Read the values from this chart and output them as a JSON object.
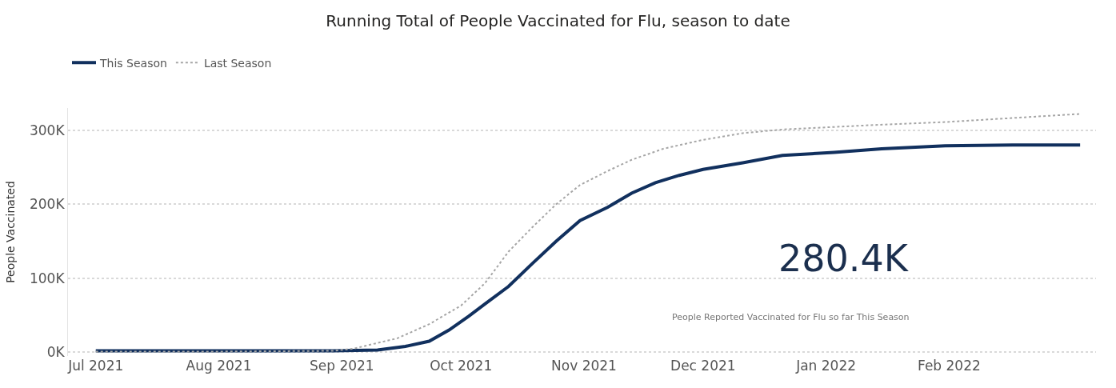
{
  "chart_data": {
    "type": "line",
    "title": "Running Total of People Vaccinated for Flu, season to date",
    "ylabel": "People Vaccinated",
    "series": [
      {
        "name": "This Season",
        "color": "#11305e",
        "line_style": "solid",
        "x": [
          "2021-07-01",
          "2021-07-31",
          "2021-08-30",
          "2021-09-10",
          "2021-09-17",
          "2021-09-23",
          "2021-09-28",
          "2021-10-03",
          "2021-10-07",
          "2021-10-13",
          "2021-10-19",
          "2021-10-25",
          "2021-10-31",
          "2021-11-07",
          "2021-11-13",
          "2021-11-19",
          "2021-11-25",
          "2021-12-01",
          "2021-12-11",
          "2021-12-21",
          "2022-01-03",
          "2022-01-15",
          "2022-01-31",
          "2022-02-17",
          "2022-03-06"
        ],
        "values": [
          2,
          2,
          2,
          3,
          8,
          15,
          30,
          49,
          65,
          89,
          120,
          150,
          178,
          196,
          215,
          229,
          239,
          247,
          256,
          266,
          270,
          275,
          279,
          280,
          280
        ]
      },
      {
        "name": "Last Season",
        "color": "#a6a6a6",
        "line_style": "dotted",
        "x": [
          "2021-07-01",
          "2021-07-31",
          "2021-08-30",
          "2021-09-04",
          "2021-09-15",
          "2021-09-23",
          "2021-10-01",
          "2021-10-07",
          "2021-10-13",
          "2021-10-19",
          "2021-10-25",
          "2021-10-31",
          "2021-11-07",
          "2021-11-13",
          "2021-11-21",
          "2021-12-01",
          "2021-12-11",
          "2021-12-21",
          "2022-01-13",
          "2022-01-31",
          "2022-03-06"
        ],
        "values": [
          1,
          1,
          2,
          5,
          19,
          38,
          63,
          93,
          136,
          169,
          200,
          226,
          245,
          260,
          275,
          287,
          296,
          301,
          307,
          311,
          322
        ]
      }
    ],
    "xlim": [
      "2021-06-24",
      "2022-03-10"
    ],
    "xticks": [
      {
        "value": "2021-07-01",
        "label": "Jul 2021"
      },
      {
        "value": "2021-08-01",
        "label": "Aug 2021"
      },
      {
        "value": "2021-09-01",
        "label": "Sep 2021"
      },
      {
        "value": "2021-10-01",
        "label": "Oct 2021"
      },
      {
        "value": "2021-11-01",
        "label": "Nov 2021"
      },
      {
        "value": "2021-12-01",
        "label": "Dec 2021"
      },
      {
        "value": "2022-01-01",
        "label": "Jan 2022"
      },
      {
        "value": "2022-02-01",
        "label": "Feb 2022"
      }
    ],
    "ylim": [
      -5,
      330
    ],
    "yticks": [
      {
        "value": 0,
        "label": "0K"
      },
      {
        "value": 100,
        "label": "100K"
      },
      {
        "value": 200,
        "label": "200K"
      },
      {
        "value": 300,
        "label": "300K"
      }
    ],
    "grid": "y",
    "legend": "top left",
    "marker": "none",
    "annotations": [
      "280.4K",
      "People Reported Vaccinated for Flu so far This Season"
    ]
  }
}
